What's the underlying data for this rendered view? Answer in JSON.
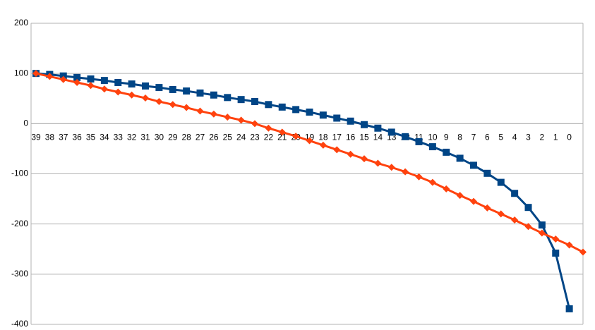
{
  "chart_data": {
    "type": "line",
    "categories": [
      "39",
      "38",
      "37",
      "36",
      "35",
      "34",
      "33",
      "32",
      "31",
      "30",
      "29",
      "28",
      "27",
      "26",
      "25",
      "24",
      "23",
      "22",
      "21",
      "20",
      "19",
      "18",
      "17",
      "16",
      "15",
      "14",
      "13",
      "12",
      "11",
      "10",
      "9",
      "8",
      "7",
      "6",
      "5",
      "4",
      "3",
      "2",
      "1",
      "0",
      null
    ],
    "series": [
      {
        "color": "#004586",
        "marker": "square",
        "values": [
          100,
          98,
          95,
          92,
          89,
          86,
          82,
          79,
          75,
          72,
          68,
          65,
          61,
          57,
          52,
          48,
          44,
          38,
          33,
          28,
          23,
          17,
          11,
          5,
          -2,
          -9,
          -17,
          -26,
          -36,
          -46,
          -57,
          -69,
          -83,
          -99,
          -117,
          -139,
          -167,
          -202,
          -258,
          -369,
          null
        ]
      },
      {
        "color": "#ff420e",
        "marker": "diamond",
        "values": [
          100,
          94,
          88,
          82,
          76,
          69,
          63,
          57,
          51,
          44,
          38,
          32,
          25,
          19,
          13,
          7,
          0,
          -9,
          -17,
          -25,
          -34,
          -43,
          -52,
          -61,
          -70,
          -79,
          -87,
          -96,
          -106,
          -117,
          -130,
          -143,
          -155,
          -168,
          -180,
          -192,
          -205,
          -218,
          -230,
          -242,
          -256
        ]
      }
    ],
    "ylim": [
      -400,
      200
    ],
    "yticks": [
      -400,
      -300,
      -200,
      -100,
      0,
      100,
      200
    ],
    "grid": true
  }
}
